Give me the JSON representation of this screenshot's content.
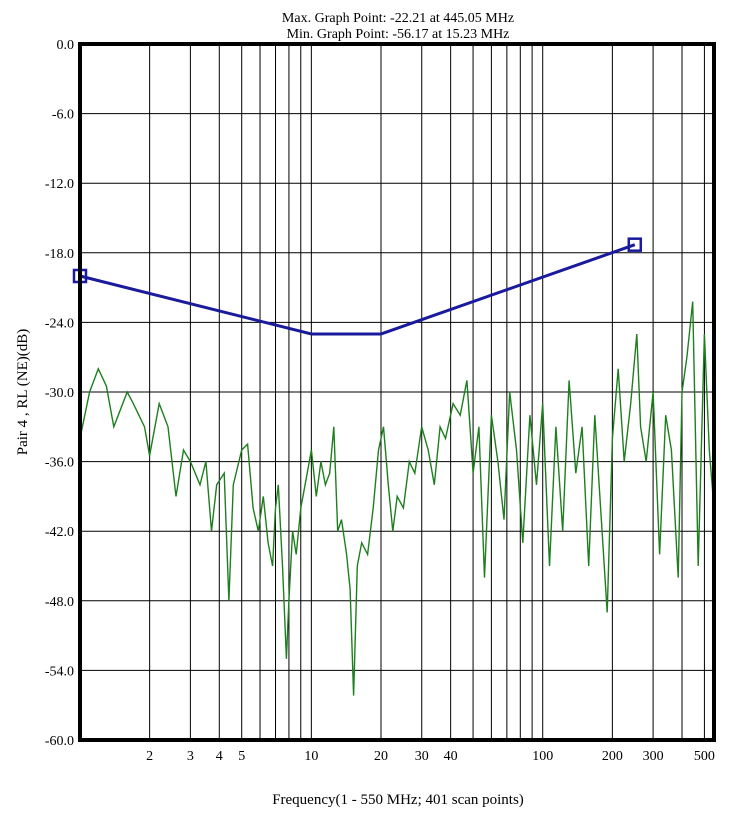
{
  "chart_data": {
    "type": "line",
    "title": "Max. Graph Point: -22.21 at 445.05 MHz",
    "subtitle": "Min. Graph Point: -56.17 at 15.23 MHz",
    "xlabel": "Frequency(1 - 550 MHz; 401 scan points)",
    "ylabel": "Pair 4 , RL (NE)(dB)",
    "x_scale": "log",
    "xlim": [
      1,
      550
    ],
    "ylim": [
      -60,
      0
    ],
    "grid": true,
    "x_tick_labels": [
      "2",
      "3",
      "4",
      "5",
      "10",
      "20",
      "30",
      "40",
      "100",
      "200",
      "300",
      "500"
    ],
    "y_tick_labels": [
      "0.0",
      "-6.0",
      "-12.0",
      "-18.0",
      "-24.0",
      "-30.0",
      "-36.0",
      "-42.0",
      "-48.0",
      "-54.0",
      "-60.0"
    ],
    "colors": {
      "limit": "#1a1a9c",
      "measured": "#1e7f1e"
    },
    "limit_line": {
      "points": [
        [
          1,
          -20.0
        ],
        [
          10,
          -25.0
        ],
        [
          20,
          -25.0
        ],
        [
          250,
          -17.3
        ]
      ],
      "markers": [
        [
          1,
          -20.0
        ],
        [
          250,
          -17.3
        ]
      ]
    },
    "measured_anchors": [
      [
        1.0,
        -34.0
      ],
      [
        1.1,
        -30.0
      ],
      [
        1.2,
        -28.0
      ],
      [
        1.3,
        -29.5
      ],
      [
        1.4,
        -33.0
      ],
      [
        1.6,
        -30.0
      ],
      [
        1.7,
        -31.0
      ],
      [
        1.9,
        -33.0
      ],
      [
        2.0,
        -35.5
      ],
      [
        2.2,
        -31.0
      ],
      [
        2.4,
        -33.0
      ],
      [
        2.6,
        -39.0
      ],
      [
        2.8,
        -35.0
      ],
      [
        3.0,
        -36.0
      ],
      [
        3.3,
        -38.0
      ],
      [
        3.5,
        -36.0
      ],
      [
        3.7,
        -42.0
      ],
      [
        3.9,
        -38.0
      ],
      [
        4.2,
        -37.0
      ],
      [
        4.4,
        -48.0
      ],
      [
        4.6,
        -38.0
      ],
      [
        5.0,
        -35.0
      ],
      [
        5.3,
        -34.5
      ],
      [
        5.6,
        -40.0
      ],
      [
        5.9,
        -42.0
      ],
      [
        6.2,
        -39.0
      ],
      [
        6.5,
        -43.0
      ],
      [
        6.8,
        -45.0
      ],
      [
        7.0,
        -40.0
      ],
      [
        7.2,
        -38.0
      ],
      [
        7.5,
        -45.0
      ],
      [
        7.8,
        -53.0
      ],
      [
        8.0,
        -48.0
      ],
      [
        8.3,
        -42.0
      ],
      [
        8.6,
        -44.0
      ],
      [
        9.0,
        -40.0
      ],
      [
        9.4,
        -38.0
      ],
      [
        10.0,
        -35.0
      ],
      [
        10.5,
        -39.0
      ],
      [
        11.0,
        -36.0
      ],
      [
        11.5,
        -38.0
      ],
      [
        12.0,
        -37.0
      ],
      [
        12.5,
        -33.0
      ],
      [
        13.0,
        -42.0
      ],
      [
        13.5,
        -41.0
      ],
      [
        14.2,
        -44.0
      ],
      [
        14.7,
        -47.0
      ],
      [
        15.23,
        -56.17
      ],
      [
        15.8,
        -45.0
      ],
      [
        16.5,
        -43.0
      ],
      [
        17.5,
        -44.0
      ],
      [
        18.5,
        -40.0
      ],
      [
        19.5,
        -35.0
      ],
      [
        20.5,
        -33.0
      ],
      [
        21.5,
        -38.0
      ],
      [
        22.5,
        -42.0
      ],
      [
        23.5,
        -39.0
      ],
      [
        25.0,
        -40.0
      ],
      [
        26.5,
        -36.0
      ],
      [
        28.0,
        -37.0
      ],
      [
        30.0,
        -33.0
      ],
      [
        32.0,
        -35.0
      ],
      [
        34.0,
        -38.0
      ],
      [
        36.0,
        -33.0
      ],
      [
        38.0,
        -34.0
      ],
      [
        41.0,
        -31.0
      ],
      [
        44.0,
        -32.0
      ],
      [
        47.0,
        -29.0
      ],
      [
        50.0,
        -37.0
      ],
      [
        53.0,
        -33.0
      ],
      [
        56.0,
        -46.0
      ],
      [
        60.0,
        -32.0
      ],
      [
        64.0,
        -36.0
      ],
      [
        68.0,
        -41.0
      ],
      [
        72.0,
        -30.0
      ],
      [
        77.0,
        -35.0
      ],
      [
        82.0,
        -43.0
      ],
      [
        88.0,
        -32.0
      ],
      [
        94.0,
        -38.0
      ],
      [
        100.0,
        -31.0
      ],
      [
        107.0,
        -45.0
      ],
      [
        114.0,
        -33.0
      ],
      [
        122.0,
        -42.0
      ],
      [
        130.0,
        -29.0
      ],
      [
        139.0,
        -37.0
      ],
      [
        148.0,
        -33.0
      ],
      [
        158.0,
        -45.0
      ],
      [
        168.0,
        -32.0
      ],
      [
        178.0,
        -40.0
      ],
      [
        190.0,
        -49.0
      ],
      [
        200.0,
        -34.0
      ],
      [
        212.0,
        -28.0
      ],
      [
        225.0,
        -36.0
      ],
      [
        240.0,
        -31.0
      ],
      [
        255.0,
        -25.0
      ],
      [
        265.0,
        -33.0
      ],
      [
        280.0,
        -36.0
      ],
      [
        300.0,
        -30.0
      ],
      [
        320.0,
        -44.0
      ],
      [
        340.0,
        -32.0
      ],
      [
        360.0,
        -35.0
      ],
      [
        385.0,
        -46.0
      ],
      [
        400.0,
        -30.0
      ],
      [
        420.0,
        -27.0
      ],
      [
        445.05,
        -22.21
      ],
      [
        470.0,
        -45.0
      ],
      [
        500.0,
        -25.0
      ],
      [
        525.0,
        -35.0
      ],
      [
        550.0,
        -40.0
      ]
    ]
  }
}
